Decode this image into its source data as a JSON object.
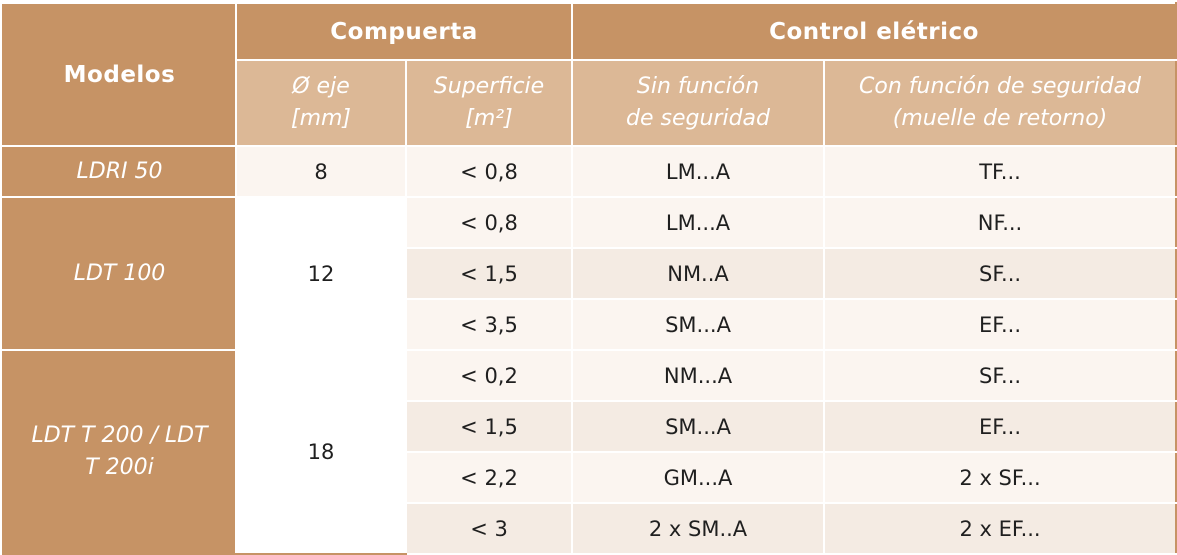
{
  "header": {
    "models_label": "Modelos",
    "group_compuerta": "Compuerta",
    "group_control": "Control elétrico",
    "eje_line1": "Ø eje",
    "eje_line2": "[mm]",
    "superficie_line1": "Superficie",
    "superficie_line2": "[m²]",
    "sin_line1": "Sin función",
    "sin_line2": "de seguridad",
    "con_line1": "Con función de seguridad",
    "con_line2": "(muelle de retorno)"
  },
  "groups": [
    {
      "model": "LDRI 50",
      "eje": "8",
      "rows": [
        {
          "superficie": "< 0,8",
          "sin": "LM...A",
          "con": "TF..."
        }
      ]
    },
    {
      "model": "LDT 100",
      "eje": "12",
      "rows": [
        {
          "superficie": "< 0,8",
          "sin": "LM...A",
          "con": "NF..."
        },
        {
          "superficie": "< 1,5",
          "sin": "NM..A",
          "con": "SF..."
        },
        {
          "superficie": "< 3,5",
          "sin": "SM...A",
          "con": "EF..."
        }
      ]
    },
    {
      "model_line1": "LDT T 200 / LDT",
      "model_line2": "T 200i",
      "eje": "18",
      "rows": [
        {
          "superficie": "< 0,2",
          "sin": "NM...A",
          "con": "SF..."
        },
        {
          "superficie": "< 1,5",
          "sin": "SM...A",
          "con": "EF..."
        },
        {
          "superficie": "< 2,2",
          "sin": "GM...A",
          "con": "2 x SF..."
        },
        {
          "superficie": "< 3",
          "sin": "2 x SM..A",
          "con": "2 x EF..."
        }
      ]
    }
  ]
}
